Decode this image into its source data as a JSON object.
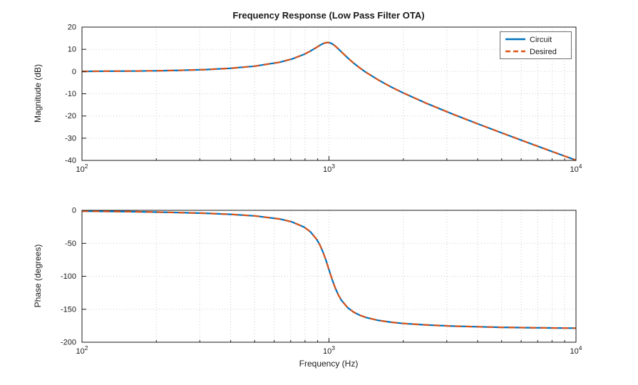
{
  "figure_title": "Frequency Response (Low Pass Filter OTA)",
  "chart_data": [
    {
      "type": "line",
      "title": "Frequency Response (Low Pass Filter OTA)",
      "xlabel": "",
      "ylabel": "Magnitude (dB)",
      "xscale": "log",
      "xlim": [
        100,
        10000
      ],
      "ylim": [
        -40,
        20
      ],
      "grid": true,
      "legend_position": "northeast",
      "yticks": [
        20,
        10,
        0,
        -10,
        -20,
        -30,
        -40
      ],
      "xticks": [
        {
          "value": 100,
          "base": "10",
          "exp": "2"
        },
        {
          "value": 1000,
          "base": "10",
          "exp": "3"
        },
        {
          "value": 10000,
          "base": "10",
          "exp": "4"
        }
      ],
      "x_minor": [
        200,
        300,
        400,
        500,
        600,
        700,
        800,
        900,
        2000,
        3000,
        4000,
        5000,
        6000,
        7000,
        8000,
        9000
      ],
      "x": [
        100,
        126,
        158,
        200,
        251,
        316,
        398,
        501,
        631,
        708,
        794,
        841,
        891,
        917,
        944,
        971,
        1000,
        1029,
        1059,
        1091,
        1122,
        1189,
        1259,
        1334,
        1413,
        1585,
        1778,
        1995,
        2512,
        3162,
        3981,
        5012,
        6310,
        7943,
        10000
      ],
      "series": [
        {
          "name": "Circuit",
          "color": "#0072BD",
          "style": "solid",
          "values": [
            0.09,
            0.14,
            0.21,
            0.34,
            0.55,
            0.89,
            1.45,
            2.42,
            4.18,
            5.63,
            7.76,
            9.19,
            10.88,
            11.75,
            12.53,
            13.02,
            13.06,
            12.54,
            11.54,
            10.22,
            8.89,
            6.18,
            3.76,
            1.58,
            -0.38,
            -3.82,
            -6.84,
            -9.58,
            -14.55,
            -19.11,
            -23.45,
            -27.66,
            -31.79,
            -35.87,
            -39.91
          ]
        },
        {
          "name": "Desired",
          "color": "#D95319",
          "style": "dashed",
          "values": [
            0.09,
            0.14,
            0.21,
            0.34,
            0.55,
            0.89,
            1.45,
            2.42,
            4.18,
            5.63,
            7.76,
            9.19,
            10.88,
            11.75,
            12.53,
            13.02,
            13.06,
            12.54,
            11.54,
            10.22,
            8.89,
            6.18,
            3.76,
            1.58,
            -0.38,
            -3.82,
            -6.84,
            -9.58,
            -14.55,
            -19.11,
            -23.45,
            -27.66,
            -31.79,
            -35.87,
            -39.91
          ]
        }
      ]
    },
    {
      "type": "line",
      "title": "",
      "xlabel": "Frequency (Hz)",
      "ylabel": "Phase (degrees)",
      "xscale": "log",
      "xlim": [
        100,
        10000
      ],
      "ylim": [
        -200,
        0
      ],
      "grid": true,
      "yticks": [
        0,
        -50,
        -100,
        -150,
        -200
      ],
      "xticks": [
        {
          "value": 100,
          "base": "10",
          "exp": "2"
        },
        {
          "value": 1000,
          "base": "10",
          "exp": "3"
        },
        {
          "value": 10000,
          "base": "10",
          "exp": "4"
        }
      ],
      "x_minor": [
        200,
        300,
        400,
        500,
        600,
        700,
        800,
        900,
        2000,
        3000,
        4000,
        5000,
        6000,
        7000,
        8000,
        9000
      ],
      "x": [
        100,
        126,
        158,
        200,
        251,
        316,
        398,
        501,
        631,
        708,
        794,
        841,
        891,
        917,
        944,
        971,
        1000,
        1029,
        1059,
        1091,
        1122,
        1189,
        1259,
        1334,
        1413,
        1585,
        1778,
        1995,
        2512,
        3162,
        3981,
        5012,
        6310,
        7943,
        10000
      ],
      "series": [
        {
          "name": "Circuit",
          "color": "#0072BD",
          "style": "solid",
          "values": [
            -1.3,
            -1.66,
            -2.06,
            -2.65,
            -3.41,
            -4.46,
            -6.0,
            -8.46,
            -13.11,
            -17.51,
            -25.52,
            -32.56,
            -43.85,
            -52.02,
            -62.58,
            -75.16,
            -90.0,
            -104.43,
            -117.31,
            -128.13,
            -136.08,
            -147.43,
            -154.44,
            -159.18,
            -162.51,
            -166.89,
            -169.64,
            -171.54,
            -174.0,
            -175.54,
            -176.59,
            -177.36,
            -177.93,
            -178.37,
            -178.71
          ]
        },
        {
          "name": "Desired",
          "color": "#D95319",
          "style": "dashed",
          "values": [
            -1.3,
            -1.66,
            -2.06,
            -2.65,
            -3.41,
            -4.46,
            -6.0,
            -8.46,
            -13.11,
            -17.51,
            -25.52,
            -32.56,
            -43.85,
            -52.02,
            -62.58,
            -75.16,
            -90.0,
            -104.43,
            -117.31,
            -128.13,
            -136.08,
            -147.43,
            -154.44,
            -159.18,
            -162.51,
            -166.89,
            -169.64,
            -171.54,
            -174.0,
            -175.54,
            -176.59,
            -177.36,
            -177.93,
            -178.37,
            -178.71
          ]
        }
      ]
    }
  ]
}
